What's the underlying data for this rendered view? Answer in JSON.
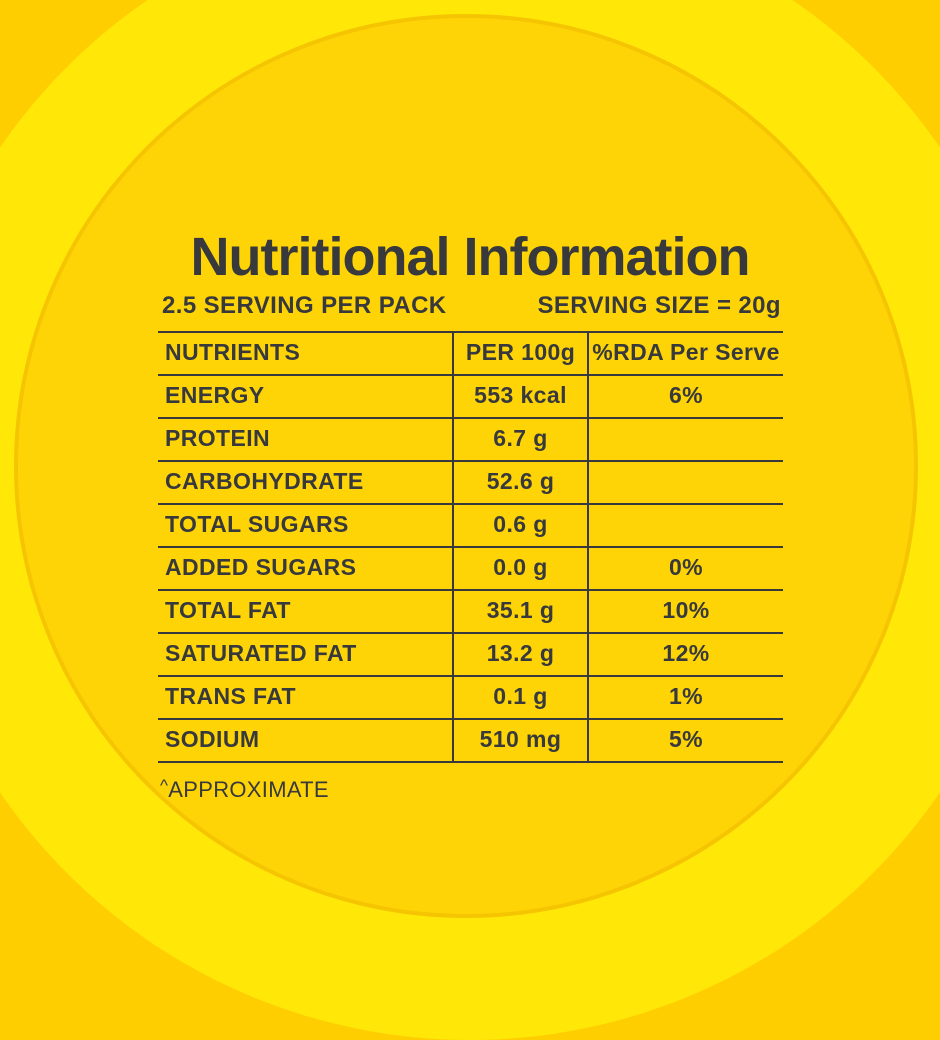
{
  "page": {
    "title": "Nutritional Information",
    "serving_per_pack": "2.5 SERVING PER PACK",
    "serving_size": "SERVING SIZE = 20g",
    "footnote_marker": "^",
    "footnote_text": "APPROXIMATE"
  },
  "table": {
    "headers": {
      "nutrients": "NUTRIENTS",
      "per_100g": "PER 100g",
      "rda_per_serve": "%RDA Per Serve"
    },
    "rows": [
      {
        "nutrient": "ENERGY",
        "per_100g": "553 kcal",
        "rda": "6%",
        "indent": 0
      },
      {
        "nutrient": "PROTEIN",
        "per_100g": "6.7 g",
        "rda": "",
        "indent": 0
      },
      {
        "nutrient": "CARBOHYDRATE",
        "per_100g": "52.6 g",
        "rda": "",
        "indent": 0
      },
      {
        "nutrient": "TOTAL SUGARS",
        "per_100g": "0.6 g",
        "rda": "",
        "indent": 1
      },
      {
        "nutrient": "ADDED SUGARS",
        "per_100g": "0.0 g",
        "rda": "0%",
        "indent": 2
      },
      {
        "nutrient": "TOTAL FAT",
        "per_100g": "35.1 g",
        "rda": "10%",
        "indent": 0
      },
      {
        "nutrient": "SATURATED FAT",
        "per_100g": "13.2 g",
        "rda": "12%",
        "indent": 1
      },
      {
        "nutrient": "TRANS FAT",
        "per_100g": "0.1 g",
        "rda": "1%",
        "indent": 1
      },
      {
        "nutrient": "SODIUM",
        "per_100g": "510 mg",
        "rda": "5%",
        "indent": 0
      }
    ]
  },
  "colors": {
    "background_outer": "#FFCE00",
    "ring_bright": "#FFE708",
    "circle_inner": "#FFD406",
    "text": "#37393C"
  }
}
